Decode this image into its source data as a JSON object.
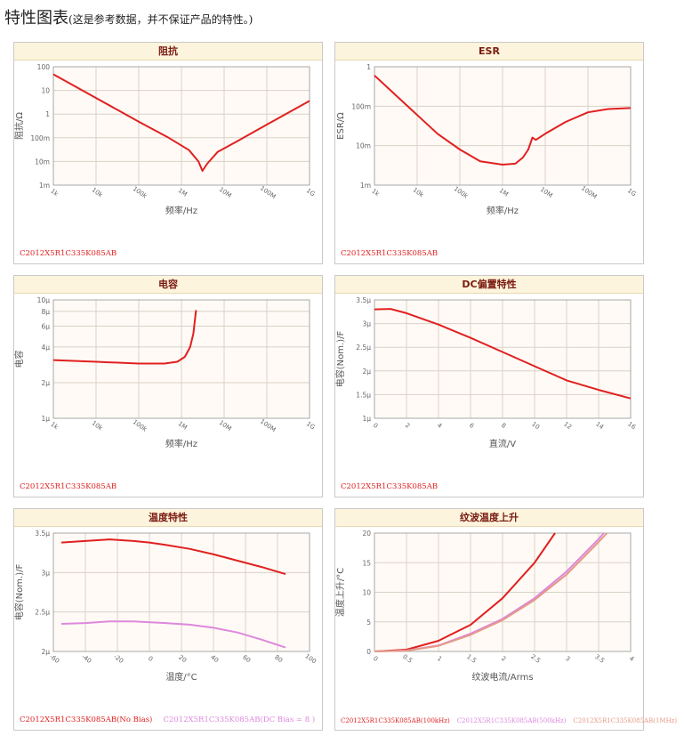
{
  "page": {
    "title": "特性图表",
    "subtitle": "(这是参考数据，并不保证产品的特性。)"
  },
  "colors": {
    "red": "#e02020",
    "pink": "#dd88dd",
    "salmon": "#e59a85",
    "plot_bg": "#fffaf5"
  },
  "chart_data": [
    {
      "id": "impedance",
      "title": "阻抗",
      "type": "line",
      "xscale": "log",
      "yscale": "log",
      "xlim": [
        1000,
        1000000000
      ],
      "ylim": [
        0.001,
        100
      ],
      "xticks": [
        [
          1000,
          "1k"
        ],
        [
          10000,
          "10k"
        ],
        [
          100000,
          "100k"
        ],
        [
          1000000,
          "1M"
        ],
        [
          10000000,
          "10M"
        ],
        [
          100000000,
          "100M"
        ],
        [
          1000000000,
          "1G"
        ]
      ],
      "yticks": [
        [
          100,
          "100"
        ],
        [
          10,
          "10"
        ],
        [
          1,
          "1"
        ],
        [
          0.1,
          "100m"
        ],
        [
          0.01,
          "10m"
        ],
        [
          0.001,
          "1m"
        ]
      ],
      "xlabel": "频率/Hz",
      "ylabel": "阻抗/Ω",
      "series": [
        {
          "name": "C2012X5R1C335K085AB",
          "color": "#e02020",
          "points": [
            [
              1000,
              48
            ],
            [
              10000,
              4.8
            ],
            [
              100000,
              0.48
            ],
            [
              500000,
              0.1
            ],
            [
              1500000,
              0.03
            ],
            [
              2500000,
              0.01
            ],
            [
              3100000,
              0.004
            ],
            [
              4000000,
              0.008
            ],
            [
              7000000,
              0.025
            ],
            [
              20000000,
              0.07
            ],
            [
              100000000,
              0.36
            ],
            [
              1000000000,
              3.6
            ]
          ]
        }
      ],
      "legend": [
        {
          "label": "C2012X5R1C335K085AB",
          "color": "#e02020"
        }
      ]
    },
    {
      "id": "esr",
      "title": "ESR",
      "type": "line",
      "xscale": "log",
      "yscale": "log",
      "xlim": [
        1000,
        1000000000
      ],
      "ylim": [
        0.001,
        1
      ],
      "xticks": [
        [
          1000,
          "1k"
        ],
        [
          10000,
          "10k"
        ],
        [
          100000,
          "100k"
        ],
        [
          1000000,
          "1M"
        ],
        [
          10000000,
          "10M"
        ],
        [
          100000000,
          "100M"
        ],
        [
          1000000000,
          "1G"
        ]
      ],
      "yticks": [
        [
          1,
          "1"
        ],
        [
          0.1,
          "100m"
        ],
        [
          0.01,
          "10m"
        ],
        [
          0.001,
          "1m"
        ]
      ],
      "xlabel": "频率/Hz",
      "ylabel": "ESR/Ω",
      "series": [
        {
          "name": "C2012X5R1C335K085AB",
          "color": "#e02020",
          "points": [
            [
              1000,
              0.6
            ],
            [
              3000,
              0.2
            ],
            [
              10000,
              0.06
            ],
            [
              30000,
              0.02
            ],
            [
              100000,
              0.008
            ],
            [
              300000,
              0.004
            ],
            [
              1000000,
              0.0033
            ],
            [
              2000000,
              0.0035
            ],
            [
              3000000,
              0.005
            ],
            [
              4000000,
              0.008
            ],
            [
              5000000,
              0.016
            ],
            [
              6000000,
              0.014
            ],
            [
              10000000,
              0.02
            ],
            [
              30000000,
              0.04
            ],
            [
              100000000,
              0.07
            ],
            [
              300000000,
              0.085
            ],
            [
              1000000000,
              0.09
            ]
          ]
        }
      ],
      "legend": [
        {
          "label": "C2012X5R1C335K085AB",
          "color": "#e02020"
        }
      ]
    },
    {
      "id": "capacitance",
      "title": "电容",
      "type": "line",
      "xscale": "log",
      "yscale": "log",
      "xlim": [
        1000,
        1000000000
      ],
      "ylim": [
        1e-06,
        1e-05
      ],
      "xticks": [
        [
          1000,
          "1k"
        ],
        [
          10000,
          "10k"
        ],
        [
          100000,
          "100k"
        ],
        [
          1000000,
          "1M"
        ],
        [
          10000000,
          "10M"
        ],
        [
          100000000,
          "100M"
        ],
        [
          1000000000,
          "1G"
        ]
      ],
      "yticks": [
        [
          1e-05,
          "10μ"
        ],
        [
          8e-06,
          "8μ"
        ],
        [
          6e-06,
          "6μ"
        ],
        [
          4e-06,
          "4μ"
        ],
        [
          2e-06,
          "2μ"
        ],
        [
          1e-06,
          "1μ"
        ]
      ],
      "xlabel": "频率/Hz",
      "ylabel": "电容",
      "series": [
        {
          "name": "C2012X5R1C335K085AB",
          "color": "#e02020",
          "points": [
            [
              1000,
              3.1e-06
            ],
            [
              10000,
              3e-06
            ],
            [
              100000,
              2.9e-06
            ],
            [
              400000,
              2.9e-06
            ],
            [
              800000,
              3e-06
            ],
            [
              1200000,
              3.3e-06
            ],
            [
              1600000,
              4e-06
            ],
            [
              1900000,
              5.2e-06
            ],
            [
              2200000,
              8.2e-06
            ]
          ]
        }
      ],
      "legend": [
        {
          "label": "C2012X5R1C335K085AB",
          "color": "#e02020"
        }
      ]
    },
    {
      "id": "dc_bias",
      "title": "DC偏置特性",
      "type": "line",
      "xscale": "linear",
      "yscale": "linear",
      "xlim": [
        0,
        16
      ],
      "ylim": [
        1e-06,
        3.5e-06
      ],
      "xticks": [
        [
          0,
          "0"
        ],
        [
          2,
          "2"
        ],
        [
          4,
          "4"
        ],
        [
          6,
          "6"
        ],
        [
          8,
          "8"
        ],
        [
          10,
          "10"
        ],
        [
          12,
          "12"
        ],
        [
          14,
          "14"
        ],
        [
          16,
          "16"
        ]
      ],
      "yticks": [
        [
          3.5e-06,
          "3.5μ"
        ],
        [
          3e-06,
          "3μ"
        ],
        [
          2.5e-06,
          "2.5μ"
        ],
        [
          2e-06,
          "2μ"
        ],
        [
          1.5e-06,
          "1.5μ"
        ],
        [
          1e-06,
          "1μ"
        ]
      ],
      "xlabel": "直流/V",
      "ylabel": "电容(Nom.)/F",
      "series": [
        {
          "name": "C2012X5R1C335K085AB",
          "color": "#e02020",
          "points": [
            [
              0,
              3.3e-06
            ],
            [
              1,
              3.31e-06
            ],
            [
              2,
              3.22e-06
            ],
            [
              4,
              2.98e-06
            ],
            [
              6,
              2.7e-06
            ],
            [
              8,
              2.4e-06
            ],
            [
              10,
              2.1e-06
            ],
            [
              12,
              1.8e-06
            ],
            [
              14,
              1.6e-06
            ],
            [
              16,
              1.42e-06
            ]
          ]
        }
      ],
      "legend": [
        {
          "label": "C2012X5R1C335K085AB",
          "color": "#e02020"
        }
      ]
    },
    {
      "id": "temperature",
      "title": "温度特性",
      "type": "line",
      "xscale": "linear",
      "yscale": "linear",
      "xlim": [
        -60,
        100
      ],
      "ylim": [
        2e-06,
        3.5e-06
      ],
      "xticks": [
        [
          -60,
          "-60"
        ],
        [
          -40,
          "-40"
        ],
        [
          -20,
          "-20"
        ],
        [
          0,
          "0"
        ],
        [
          20,
          "20"
        ],
        [
          40,
          "40"
        ],
        [
          60,
          "60"
        ],
        [
          80,
          "80"
        ],
        [
          100,
          "100"
        ]
      ],
      "yticks": [
        [
          3.5e-06,
          "3.5μ"
        ],
        [
          3e-06,
          "3μ"
        ],
        [
          2.5e-06,
          "2.5μ"
        ],
        [
          2e-06,
          "2μ"
        ]
      ],
      "xlabel": "温度/°C",
      "ylabel": "电容(Nom.)/F",
      "series": [
        {
          "name": "C2012X5R1C335K085AB(No Bias)",
          "color": "#e02020",
          "points": [
            [
              -55,
              3.38e-06
            ],
            [
              -40,
              3.4e-06
            ],
            [
              -25,
              3.42e-06
            ],
            [
              -10,
              3.4e-06
            ],
            [
              0,
              3.38e-06
            ],
            [
              10,
              3.35e-06
            ],
            [
              25,
              3.3e-06
            ],
            [
              40,
              3.23e-06
            ],
            [
              55,
              3.15e-06
            ],
            [
              70,
              3.07e-06
            ],
            [
              85,
              2.98e-06
            ]
          ]
        },
        {
          "name": "C2012X5R1C335K085AB(DC Bias = 8 )",
          "color": "#dd88dd",
          "points": [
            [
              -55,
              2.35e-06
            ],
            [
              -40,
              2.36e-06
            ],
            [
              -25,
              2.38e-06
            ],
            [
              -10,
              2.38e-06
            ],
            [
              10,
              2.36e-06
            ],
            [
              25,
              2.34e-06
            ],
            [
              40,
              2.3e-06
            ],
            [
              55,
              2.24e-06
            ],
            [
              70,
              2.15e-06
            ],
            [
              85,
              2.05e-06
            ]
          ]
        }
      ],
      "legend": [
        {
          "label": "C2012X5R1C335K085AB(No Bias)",
          "color": "#e02020"
        },
        {
          "label": "C2012X5R1C335K085AB(DC Bias = 8 )",
          "color": "#dd88dd"
        }
      ]
    },
    {
      "id": "ripple",
      "title": "纹波温度上升",
      "type": "line",
      "xscale": "linear",
      "yscale": "linear",
      "xlim": [
        0,
        4
      ],
      "ylim": [
        0,
        20
      ],
      "xticks": [
        [
          0,
          "0"
        ],
        [
          0.5,
          "0.5"
        ],
        [
          1,
          "1"
        ],
        [
          1.5,
          "1.5"
        ],
        [
          2,
          "2"
        ],
        [
          2.5,
          "2.5"
        ],
        [
          3,
          "3"
        ],
        [
          3.5,
          "3.5"
        ],
        [
          4,
          "4"
        ]
      ],
      "yticks": [
        [
          20,
          "20"
        ],
        [
          15,
          "15"
        ],
        [
          10,
          "10"
        ],
        [
          5,
          "5"
        ],
        [
          0,
          "0"
        ]
      ],
      "xlabel": "纹波电流/Arms",
      "ylabel": "温度上升/°C",
      "series": [
        {
          "name": "C2012X5R1C335K085AB(100kHz)",
          "color": "#e02020",
          "points": [
            [
              0,
              0
            ],
            [
              0.5,
              0.3
            ],
            [
              1,
              1.8
            ],
            [
              1.5,
              4.5
            ],
            [
              2,
              9
            ],
            [
              2.5,
              15
            ],
            [
              2.82,
              20
            ]
          ]
        },
        {
          "name": "C2012X5R1C335K085AB(500kHz)",
          "color": "#dd88dd",
          "points": [
            [
              0,
              0
            ],
            [
              0.5,
              0.15
            ],
            [
              1,
              1
            ],
            [
              1.5,
              3
            ],
            [
              2,
              5.5
            ],
            [
              2.5,
              9
            ],
            [
              3,
              13.5
            ],
            [
              3.5,
              19
            ],
            [
              3.58,
              20
            ]
          ]
        },
        {
          "name": "C2012X5R1C335K085AB(1MHz)",
          "color": "#e59a85",
          "points": [
            [
              0,
              0
            ],
            [
              0.5,
              0.14
            ],
            [
              1,
              0.95
            ],
            [
              1.5,
              2.8
            ],
            [
              2,
              5.3
            ],
            [
              2.5,
              8.7
            ],
            [
              3,
              13
            ],
            [
              3.5,
              18.5
            ],
            [
              3.63,
              20
            ]
          ]
        }
      ],
      "legend": [
        {
          "label": "C2012X5R1C335K085AB(100kHz)",
          "color": "#e02020"
        },
        {
          "label": "C2012X5R1C335K085AB(500kHz)",
          "color": "#dd88dd"
        },
        {
          "label": "C2012X5R1C335K085AB(1MHz)",
          "color": "#e59a85"
        }
      ]
    }
  ]
}
